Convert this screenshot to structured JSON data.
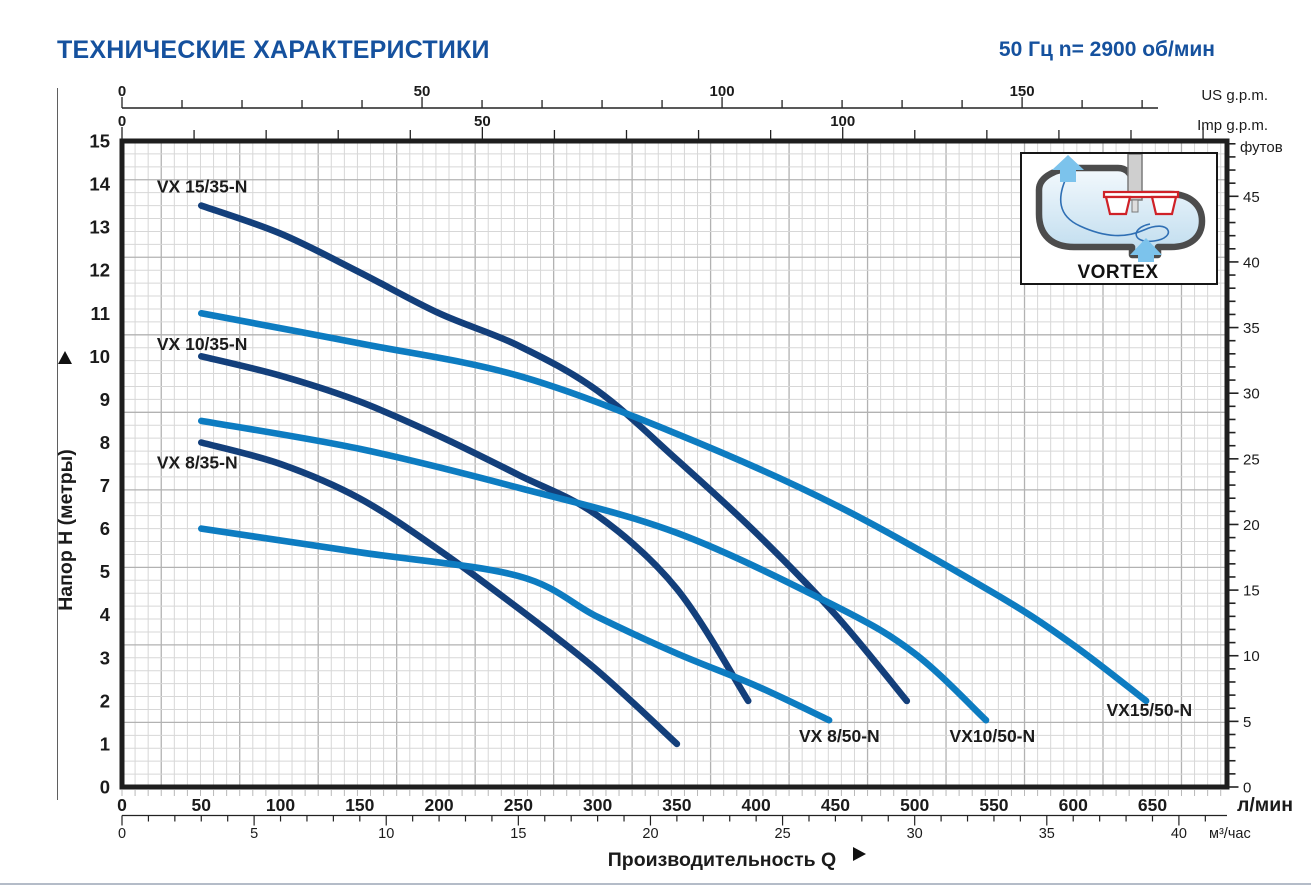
{
  "header": {
    "title": "ТЕХНИЧЕСКИЕ ХАРАКТЕРИСТИКИ",
    "spec": "50 Гц  n= 2900 об/мин"
  },
  "inset": {
    "label": "VORTEX"
  },
  "colors": {
    "heading_blue": "#15519e",
    "curve_dark": "#133f7b",
    "curve_light": "#0d7cc1",
    "impeller_red": "#cf2127",
    "arrow_blue": "#7cc3ec"
  },
  "chart_data": {
    "type": "line",
    "xlabel": "Производительность  Q",
    "ylabel": "Напор  H  (метры)",
    "grid": true,
    "legend_position": "inline-curve-labels",
    "xlim_lpm": [
      0,
      697
    ],
    "ylim_m": [
      0,
      15
    ],
    "x_axes": [
      {
        "id": "us_gpm",
        "unit_label": "US g.p.m.",
        "lpm_per_unit": 3.785,
        "tick_step": 10,
        "tick_count": 18,
        "labels": [
          0,
          50,
          100,
          150
        ]
      },
      {
        "id": "imp_gpm",
        "unit_label": "Imp g.p.m.",
        "lpm_per_unit": 4.546,
        "tick_step": 10,
        "tick_count": 16,
        "labels": [
          0,
          50,
          100
        ]
      },
      {
        "id": "lpm",
        "unit_label": "л/мин",
        "lpm_per_unit": 1,
        "tick_step": 50,
        "labels": [
          0,
          50,
          100,
          150,
          200,
          250,
          300,
          350,
          400,
          450,
          500,
          550,
          600,
          650
        ]
      },
      {
        "id": "m3h",
        "unit_label": "м³/час",
        "lpm_per_unit": 16.6667,
        "tick_step": 1,
        "tick_count": 42,
        "labels": [
          0,
          5,
          10,
          15,
          20,
          25,
          30,
          35,
          40
        ]
      }
    ],
    "y_axes": [
      {
        "id": "metres",
        "unit_label": "",
        "m_per_unit": 1,
        "labels": [
          0,
          1,
          2,
          3,
          4,
          5,
          6,
          7,
          8,
          9,
          10,
          11,
          12,
          13,
          14,
          15
        ]
      },
      {
        "id": "feet",
        "unit_label": "футов",
        "m_per_unit": 0.3048,
        "tick_step": 1,
        "tick_count": 50,
        "labels": [
          0,
          5,
          10,
          15,
          20,
          25,
          30,
          35,
          40,
          45
        ]
      }
    ],
    "series": [
      {
        "name": "VX 15/35-N",
        "color": "#133f7b",
        "label_at": [
          22,
          13.8
        ],
        "points": [
          [
            50,
            13.5
          ],
          [
            100,
            12.85
          ],
          [
            150,
            11.95
          ],
          [
            200,
            11.0
          ],
          [
            250,
            10.25
          ],
          [
            300,
            9.2
          ],
          [
            350,
            7.6
          ],
          [
            400,
            5.9
          ],
          [
            450,
            4.0
          ],
          [
            495,
            2.0
          ]
        ]
      },
      {
        "name": "VX 10/35-N",
        "color": "#133f7b",
        "label_at": [
          22,
          10.15
        ],
        "points": [
          [
            50,
            10.0
          ],
          [
            100,
            9.55
          ],
          [
            150,
            8.95
          ],
          [
            200,
            8.15
          ],
          [
            250,
            7.25
          ],
          [
            300,
            6.3
          ],
          [
            350,
            4.6
          ],
          [
            395,
            2.0
          ]
        ]
      },
      {
        "name": "VX 8/35-N",
        "color": "#133f7b",
        "label_at": [
          22,
          7.4
        ],
        "points": [
          [
            50,
            8.0
          ],
          [
            100,
            7.5
          ],
          [
            150,
            6.7
          ],
          [
            200,
            5.5
          ],
          [
            250,
            4.15
          ],
          [
            300,
            2.7
          ],
          [
            350,
            1.0
          ]
        ]
      },
      {
        "name": "VX 8/50-N",
        "color": "#0d7cc1",
        "label_at": [
          427,
          1.05
        ],
        "points": [
          [
            50,
            6.0
          ],
          [
            150,
            5.45
          ],
          [
            250,
            4.9
          ],
          [
            300,
            3.95
          ],
          [
            350,
            3.1
          ],
          [
            400,
            2.35
          ],
          [
            446,
            1.55
          ]
        ]
      },
      {
        "name": "VX10/50-N",
        "color": "#0d7cc1",
        "label_at": [
          522,
          1.05
        ],
        "points": [
          [
            50,
            8.5
          ],
          [
            150,
            7.85
          ],
          [
            250,
            6.95
          ],
          [
            350,
            5.9
          ],
          [
            450,
            4.2
          ],
          [
            500,
            3.1
          ],
          [
            545,
            1.55
          ]
        ]
      },
      {
        "name": "VX15/50-N",
        "color": "#0d7cc1",
        "label_at": [
          621,
          1.65
        ],
        "points": [
          [
            50,
            11.0
          ],
          [
            150,
            10.3
          ],
          [
            250,
            9.55
          ],
          [
            350,
            8.2
          ],
          [
            450,
            6.55
          ],
          [
            550,
            4.5
          ],
          [
            600,
            3.3
          ],
          [
            646,
            2.0
          ]
        ]
      }
    ]
  }
}
